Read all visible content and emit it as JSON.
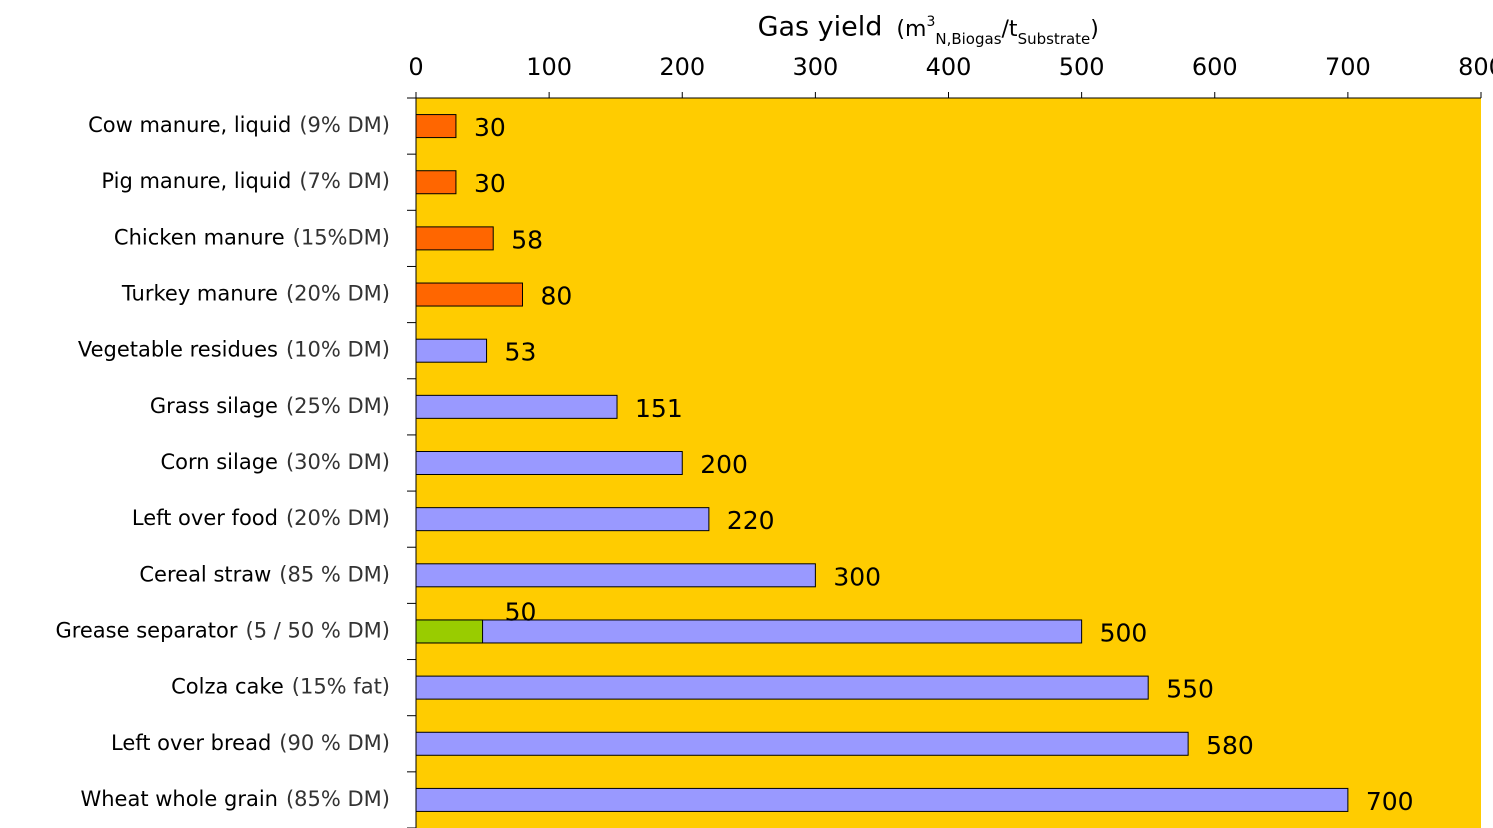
{
  "chart_data": {
    "type": "bar",
    "orientation": "horizontal",
    "title": "Gas yield",
    "x_unit": [
      {
        "text": "(m"
      },
      {
        "text": "3",
        "pos": "super"
      },
      {
        "text": "N,Biogas",
        "pos": "sub"
      },
      {
        "text": "/t"
      },
      {
        "text": "Substrate",
        "pos": "sub"
      },
      {
        "text": ")"
      }
    ],
    "categories": [
      "Cow manure, liquid",
      "Pig manure, liquid",
      "Chicken manure",
      "Turkey manure",
      "Vegetable residues",
      "Grass silage",
      "Corn silage",
      "Left over food",
      "Cereal straw",
      "Grease separator",
      "Colza cake",
      "Left over bread",
      "Wheat whole grain"
    ],
    "category_details": [
      "(9% DM)",
      "(7% DM)",
      "(15%DM)",
      "(20% DM)",
      "(10% DM)",
      "(25% DM)",
      "(30% DM)",
      "(20% DM)",
      "(85 % DM)",
      "(5 / 50 % DM)",
      "(15% fat)",
      "(90 % DM)",
      "(85% DM)"
    ],
    "series": [
      {
        "values": [
          30,
          30,
          58,
          80,
          53,
          151,
          200,
          220,
          300,
          500,
          550,
          580,
          700
        ],
        "colors": [
          "#ff6600",
          "#ff6600",
          "#ff6600",
          "#ff6600",
          "#9999ff",
          "#9999ff",
          "#9999ff",
          "#9999ff",
          "#9999ff",
          "#9999ff",
          "#9999ff",
          "#9999ff",
          "#9999ff"
        ]
      },
      {
        "values": [
          null,
          null,
          null,
          null,
          null,
          null,
          null,
          null,
          null,
          50,
          null,
          null,
          null
        ],
        "color": "#99cc00"
      }
    ],
    "xlim": [
      0,
      800
    ],
    "xticks": [
      0,
      100,
      200,
      300,
      400,
      500,
      600,
      700,
      800
    ],
    "background": "#ffcc00"
  }
}
